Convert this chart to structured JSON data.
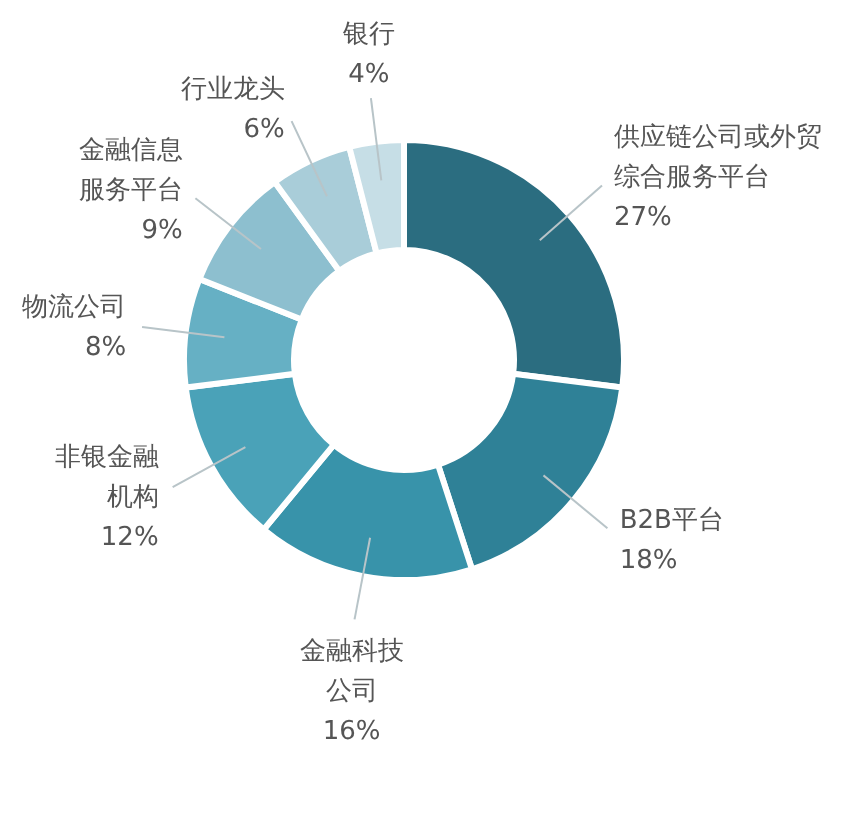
{
  "chart_data": {
    "type": "donut",
    "categories": [
      "供应链公司或外贸综合服务平台",
      "B2B平台",
      "金融科技公司",
      "非银金融机构",
      "物流公司",
      "金融信息服务平台",
      "行业龙头",
      "银行"
    ],
    "values": [
      27,
      18,
      16,
      12,
      8,
      9,
      6,
      4
    ],
    "value_labels": [
      "27%",
      "18%",
      "16%",
      "12%",
      "8%",
      "9%",
      "6%",
      "4%"
    ],
    "colors": [
      "#2b6d80",
      "#2f8197",
      "#3893aa",
      "#4aa2b8",
      "#66b0c4",
      "#8dbfcf",
      "#a9cdd9",
      "#c6dee6"
    ]
  }
}
